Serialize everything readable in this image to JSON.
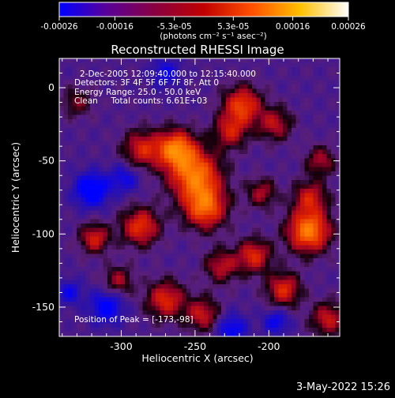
{
  "colorbar": {
    "ticks": [
      "-0.00026",
      "-0.00016",
      "-5.3e-05",
      "5.3e-05",
      "0.00016",
      "0.00026"
    ],
    "tick_values": [
      -0.00026,
      -0.00016,
      -5.3e-05,
      5.3e-05,
      0.00016,
      0.00026
    ],
    "range": [
      -0.00026,
      0.00026
    ],
    "unit_label": "(photons cm⁻² s⁻¹ asec⁻²)",
    "colors": [
      "#0000ff",
      "#5a0096",
      "#8a0040",
      "#c00000",
      "#ff5000",
      "#ffc000",
      "#ffffff"
    ]
  },
  "annotations": {
    "time": "2-Dec-2005 12:09:40.000 to 12:15:40.000",
    "detectors": "Detectors: 3F 4F 5F 6F 7F 8F, Att 0",
    "energy": "Energy Range: 25.0 - 50.0 keV",
    "clean": "Clean     Total counts: 6.61E+03",
    "peak": "Position of Peak = [-173,-98]"
  },
  "footer": {
    "date": "3-May-2022 15:26"
  },
  "chart_data": {
    "type": "heatmap",
    "title": "Reconstructed RHESSI Image",
    "xlabel": "Heliocentric X (arcsec)",
    "ylabel": "Heliocentric Y (arcsec)",
    "xlim": [
      -342,
      -152
    ],
    "ylim": [
      -170,
      20
    ],
    "xticks": [
      -300,
      -250,
      -200
    ],
    "xtick_labels": [
      "-300",
      "-250",
      "-200"
    ],
    "yticks": [
      0,
      -50,
      -100,
      -150
    ],
    "ytick_labels": [
      "0",
      "-50",
      "-100",
      "-150"
    ],
    "peak": {
      "x": -173,
      "y": -98
    },
    "sources": [
      {
        "x": -263,
        "y": -42,
        "amp": 0.95,
        "sigma": 9
      },
      {
        "x": -250,
        "y": -60,
        "amp": 0.95,
        "sigma": 12
      },
      {
        "x": -243,
        "y": -82,
        "amp": 0.85,
        "sigma": 10
      },
      {
        "x": -218,
        "y": -12,
        "amp": 0.75,
        "sigma": 9
      },
      {
        "x": -226,
        "y": -30,
        "amp": 0.55,
        "sigma": 8
      },
      {
        "x": -196,
        "y": -25,
        "amp": 0.5,
        "sigma": 8
      },
      {
        "x": -173,
        "y": -98,
        "amp": 1.0,
        "sigma": 10
      },
      {
        "x": -172,
        "y": -75,
        "amp": 0.55,
        "sigma": 8
      },
      {
        "x": -286,
        "y": -42,
        "amp": 0.6,
        "sigma": 9
      },
      {
        "x": -287,
        "y": -95,
        "amp": 0.7,
        "sigma": 9
      },
      {
        "x": -318,
        "y": -103,
        "amp": 0.6,
        "sigma": 7
      },
      {
        "x": -210,
        "y": -115,
        "amp": 0.65,
        "sigma": 8
      },
      {
        "x": -232,
        "y": -122,
        "amp": 0.5,
        "sigma": 8
      },
      {
        "x": -270,
        "y": -145,
        "amp": 0.65,
        "sigma": 9
      },
      {
        "x": -245,
        "y": -155,
        "amp": 0.55,
        "sigma": 8
      },
      {
        "x": -190,
        "y": -138,
        "amp": 0.65,
        "sigma": 8
      },
      {
        "x": -160,
        "y": -158,
        "amp": 0.55,
        "sigma": 8
      },
      {
        "x": -165,
        "y": -50,
        "amp": 0.45,
        "sigma": 7
      },
      {
        "x": -205,
        "y": -72,
        "amp": 0.45,
        "sigma": 7
      },
      {
        "x": -302,
        "y": -132,
        "amp": 0.45,
        "sigma": 7
      },
      {
        "x": -330,
        "y": -10,
        "amp": 0.35,
        "sigma": 7
      }
    ],
    "cold_spots": [
      {
        "x": -320,
        "y": -70,
        "amp": 0.7,
        "sigma": 8
      },
      {
        "x": -298,
        "y": -62,
        "amp": 0.4,
        "sigma": 7
      },
      {
        "x": -310,
        "y": -150,
        "amp": 0.55,
        "sigma": 8
      },
      {
        "x": -225,
        "y": -165,
        "amp": 0.5,
        "sigma": 7
      },
      {
        "x": -195,
        "y": -160,
        "amp": 0.45,
        "sigma": 6
      },
      {
        "x": -270,
        "y": 10,
        "amp": 0.4,
        "sigma": 7
      },
      {
        "x": -335,
        "y": -140,
        "amp": 0.4,
        "sigma": 6
      }
    ]
  }
}
